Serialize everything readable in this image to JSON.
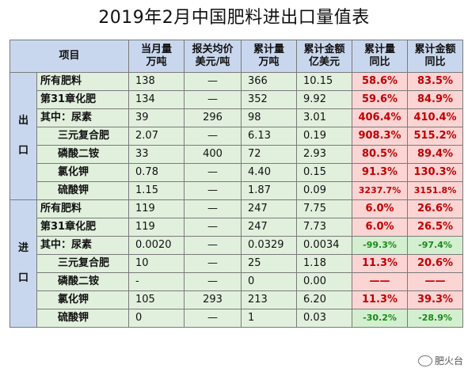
{
  "title": "2019年2月中国肥料进出口量值表",
  "headers": [
    "项目",
    "当月量\n万吨",
    "报关均价\n美元/吨",
    "累计量\n万吨",
    "累计金额\n亿美元",
    "累计量\n同比",
    "累计金额\n同比"
  ],
  "sections": [
    {
      "label": [
        "出",
        "口"
      ],
      "rows": [
        {
          "item": "所有肥料",
          "indent": false,
          "month": "138",
          "price": "—",
          "cum": "366",
          "amt": "10.15",
          "cum_yoy": "58.6%",
          "amt_yoy": "83.5%"
        },
        {
          "item": "第31章化肥",
          "indent": false,
          "month": "134",
          "price": "—",
          "cum": "352",
          "amt": "9.92",
          "cum_yoy": "59.6%",
          "amt_yoy": "84.9%"
        },
        {
          "item": "其中：尿素",
          "indent": false,
          "month": "39",
          "price": "296",
          "cum": "98",
          "amt": "3.01",
          "cum_yoy": "406.4%",
          "amt_yoy": "410.4%"
        },
        {
          "item": "三元复合肥",
          "indent": true,
          "month": "2.07",
          "price": "—",
          "cum": "6.13",
          "amt": "0.19",
          "cum_yoy": "908.3%",
          "amt_yoy": "515.2%"
        },
        {
          "item": "磷酸二铵",
          "indent": true,
          "month": "33",
          "price": "400",
          "cum": "72",
          "amt": "2.93",
          "cum_yoy": "80.5%",
          "amt_yoy": "89.4%"
        },
        {
          "item": "氯化钾",
          "indent": true,
          "month": "0.78",
          "price": "—",
          "cum": "4.40",
          "amt": "0.15",
          "cum_yoy": "91.3%",
          "amt_yoy": "130.3%"
        },
        {
          "item": "硫酸钾",
          "indent": true,
          "month": "1.15",
          "price": "—",
          "cum": "1.87",
          "amt": "0.09",
          "cum_yoy": "3237.7%",
          "amt_yoy": "3151.8%"
        }
      ]
    },
    {
      "label": [
        "进",
        "口"
      ],
      "rows": [
        {
          "item": "所有肥料",
          "indent": false,
          "month": "119",
          "price": "—",
          "cum": "247",
          "amt": "7.75",
          "cum_yoy": "6.0%",
          "amt_yoy": "26.6%"
        },
        {
          "item": "第31章化肥",
          "indent": false,
          "month": "119",
          "price": "—",
          "cum": "247",
          "amt": "7.73",
          "cum_yoy": "6.0%",
          "amt_yoy": "26.5%"
        },
        {
          "item": "其中：尿素",
          "indent": false,
          "month": "0.0020",
          "price": "—",
          "cum": "0.0329",
          "amt": "0.0034",
          "cum_yoy": "-99.3%",
          "amt_yoy": "-97.4%"
        },
        {
          "item": "三元复合肥",
          "indent": true,
          "month": "10",
          "price": "—",
          "cum": "25",
          "amt": "1.18",
          "cum_yoy": "11.3%",
          "amt_yoy": "20.6%"
        },
        {
          "item": "磷酸二铵",
          "indent": true,
          "month": "-",
          "price": "—",
          "cum": "0",
          "amt": "0.00",
          "cum_yoy": "——",
          "amt_yoy": "——"
        },
        {
          "item": "氯化钾",
          "indent": true,
          "month": "105",
          "price": "293",
          "cum": "213",
          "amt": "6.20",
          "cum_yoy": "11.3%",
          "amt_yoy": "39.3%"
        },
        {
          "item": "硫酸钾",
          "indent": true,
          "month": "0",
          "price": "—",
          "cum": "1",
          "amt": "0.03",
          "cum_yoy": "-30.2%",
          "amt_yoy": "-28.9%"
        }
      ]
    }
  ],
  "watermark": "肥火台",
  "colors": {
    "header_bg": "#c9d7ee",
    "data_bg": "#e1f0dd",
    "pos_bg": "#fbd5d4",
    "pos_text": "#c00000",
    "neg_bg": "#d3efcf",
    "neg_text": "#1a8a1a"
  }
}
